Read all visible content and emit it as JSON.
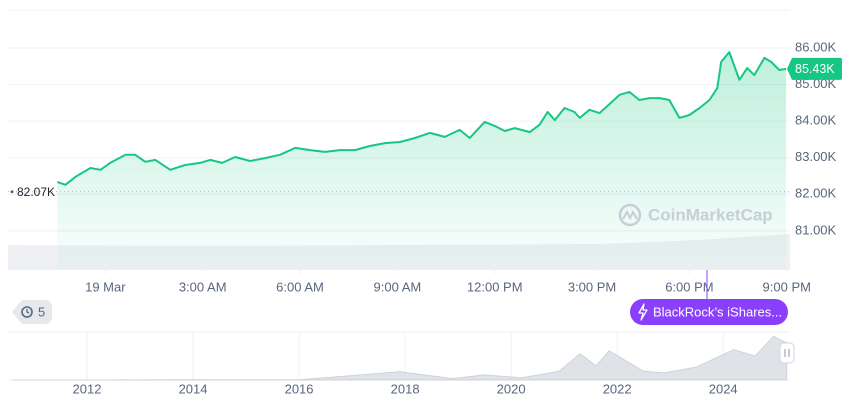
{
  "chart_data": [
    {
      "type": "line",
      "color": "#16c784",
      "x": [
        -1.48,
        -1.23,
        -0.92,
        -0.46,
        -0.15,
        0.15,
        0.62,
        0.92,
        1.23,
        1.54,
        2.0,
        2.46,
        2.92,
        3.23,
        3.6,
        4.0,
        4.46,
        4.92,
        5.38,
        5.85,
        6.31,
        6.77,
        7.23,
        7.69,
        8.15,
        8.62,
        9.08,
        9.54,
        10.0,
        10.46,
        10.92,
        11.23,
        11.69,
        12.0,
        12.31,
        12.62,
        13.08,
        13.38,
        13.63,
        13.85,
        14.15,
        14.46,
        14.62,
        14.92,
        15.23,
        15.54,
        15.85,
        16.15,
        16.46,
        16.77,
        17.08,
        17.38,
        17.69,
        18.0,
        18.31,
        18.62,
        18.86,
        18.98,
        19.23,
        19.54,
        19.78,
        20.0,
        20.31,
        20.52,
        20.77,
        20.98
      ],
      "values": [
        82340,
        82260,
        82480,
        82720,
        82670,
        82860,
        83080,
        83080,
        82890,
        82940,
        82670,
        82800,
        82860,
        82940,
        82860,
        83020,
        82910,
        82990,
        83080,
        83270,
        83210,
        83160,
        83210,
        83210,
        83320,
        83400,
        83430,
        83540,
        83680,
        83570,
        83760,
        83540,
        83980,
        83870,
        83730,
        83810,
        83700,
        83900,
        84250,
        84030,
        84360,
        84250,
        84090,
        84310,
        84220,
        84470,
        84720,
        84800,
        84580,
        84630,
        84630,
        84580,
        84090,
        84170,
        84360,
        84580,
        84910,
        85620,
        85890,
        85130,
        85450,
        85260,
        85730,
        85620,
        85400,
        85430
      ],
      "xlim": [
        -3,
        21.1
      ],
      "xticks": [
        {
          "value": 0,
          "label": "19 Mar"
        },
        {
          "value": 3,
          "label": "3:00 AM"
        },
        {
          "value": 6,
          "label": "6:00 AM"
        },
        {
          "value": 9,
          "label": "9:00 AM"
        },
        {
          "value": 12,
          "label": "12:00 PM"
        },
        {
          "value": 15,
          "label": "3:00 PM"
        },
        {
          "value": 18,
          "label": "6:00 PM"
        },
        {
          "value": 21,
          "label": "9:00 PM"
        }
      ],
      "ylim": [
        79930,
        87040
      ],
      "yticks": [
        {
          "value": 81000,
          "label": "81.00K"
        },
        {
          "value": 82000,
          "label": "82.00K"
        },
        {
          "value": 83000,
          "label": "83.00K"
        },
        {
          "value": 84000,
          "label": "84.00K"
        },
        {
          "value": 85000,
          "label": "85.00K"
        },
        {
          "value": 86000,
          "label": "86.00K"
        }
      ],
      "grid": true,
      "open_price": {
        "value": 82070,
        "label": "82.07K"
      },
      "last_price": {
        "value": 85430,
        "label": "85.43K"
      },
      "watermark": "CoinMarketCap",
      "event_count": 5,
      "event_label": "BlackRock’s iShares..."
    },
    {
      "type": "area",
      "color": "#dfe2e7",
      "x": [
        2010.6,
        2012.0,
        2013.9,
        2014.5,
        2016.0,
        2017.9,
        2018.9,
        2019.5,
        2020.2,
        2020.9,
        2021.3,
        2021.6,
        2021.85,
        2022.5,
        2022.9,
        2023.5,
        2024.2,
        2024.6,
        2024.95,
        2025.2
      ],
      "values": [
        0,
        5,
        1000,
        500,
        400,
        19000,
        3500,
        12000,
        5000,
        20000,
        60000,
        33000,
        67000,
        20000,
        16500,
        30000,
        70000,
        55000,
        100000,
        85000
      ],
      "xlim": [
        2010.51,
        2025.26
      ],
      "xticks": [
        2012,
        2014,
        2016,
        2018,
        2020,
        2022,
        2024
      ],
      "ylim": [
        0,
        110000
      ]
    }
  ]
}
